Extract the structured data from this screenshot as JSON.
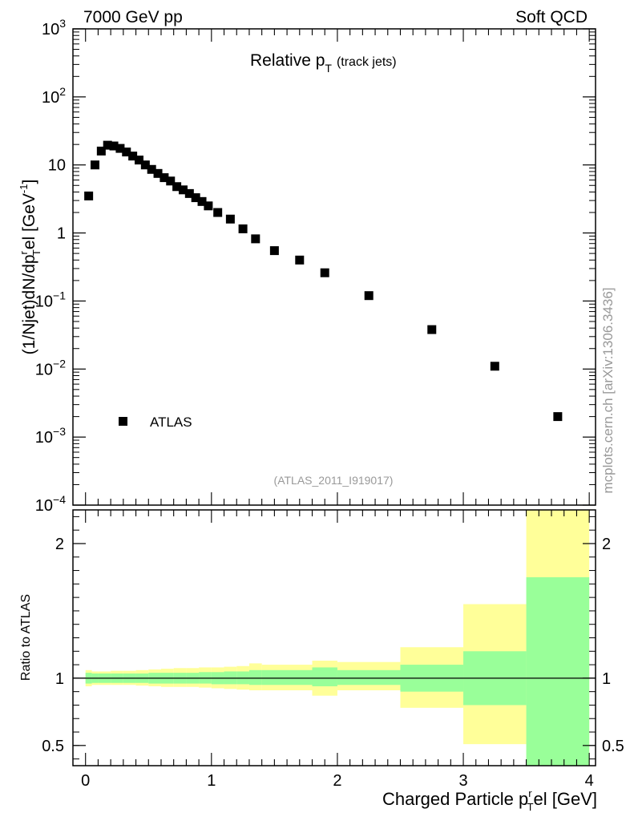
{
  "header": {
    "left": "7000 GeV pp",
    "right": "Soft QCD"
  },
  "plot_title": {
    "main": "Relative p",
    "sub": "T",
    "paren": "(track jets)"
  },
  "analysis_id": "(ATLAS_2011_I919017)",
  "watermark": "mcplots.cern.ch [arXiv:1306.3436]",
  "legend": {
    "label": "ATLAS"
  },
  "colors": {
    "band_outer": "#ffff99",
    "band_inner": "#99ff99",
    "marker": "#000000"
  },
  "chart_data": [
    {
      "type": "scatter",
      "panel": "main",
      "yscale": "log",
      "ylabel": "(1/Njet)dN/dp^r_T el [GeV^-1]",
      "xlim": [
        -0.1,
        4.05
      ],
      "ylim": [
        0.0001,
        1000
      ],
      "yticks": [
        {
          "value": 0.0001,
          "base": "10",
          "exp": "−4"
        },
        {
          "value": 0.001,
          "base": "10",
          "exp": "−3"
        },
        {
          "value": 0.01,
          "base": "10",
          "exp": "−2"
        },
        {
          "value": 0.1,
          "base": "10",
          "exp": "−1"
        },
        {
          "value": 1,
          "base": "1",
          "exp": ""
        },
        {
          "value": 10,
          "base": "10",
          "exp": ""
        },
        {
          "value": 100,
          "base": "10",
          "exp": "2"
        },
        {
          "value": 1000,
          "base": "10",
          "exp": "3"
        }
      ],
      "series": [
        {
          "name": "ATLAS",
          "x": [
            0.025,
            0.075,
            0.125,
            0.175,
            0.225,
            0.275,
            0.325,
            0.375,
            0.425,
            0.475,
            0.525,
            0.575,
            0.625,
            0.675,
            0.725,
            0.775,
            0.825,
            0.875,
            0.925,
            0.975,
            1.05,
            1.15,
            1.25,
            1.35,
            1.5,
            1.7,
            1.9,
            2.25,
            2.75,
            3.25,
            3.75
          ],
          "y": [
            3.5,
            10,
            16,
            19.5,
            19,
            17.5,
            15.5,
            13.5,
            11.8,
            10,
            8.6,
            7.5,
            6.5,
            5.8,
            4.8,
            4.3,
            3.8,
            3.3,
            2.9,
            2.5,
            2.0,
            1.6,
            1.15,
            0.82,
            0.55,
            0.4,
            0.26,
            0.12,
            0.038,
            0.011,
            0.002
          ]
        }
      ]
    },
    {
      "type": "area",
      "panel": "ratio",
      "ylabel": "Ratio to ATLAS",
      "xlabel": "Charged Particle p^r_T el [GeV]",
      "xlim": [
        -0.1,
        4.05
      ],
      "ylim": [
        0.35,
        2.25
      ],
      "xticks": [
        "0",
        "1",
        "2",
        "3",
        "4"
      ],
      "xtick_values": [
        0,
        1,
        2,
        3,
        4
      ],
      "yticks": [
        "0.5",
        "1",
        "2"
      ],
      "ytick_values": [
        0.5,
        1,
        2
      ],
      "bins": [
        {
          "lo": 0.0,
          "hi": 0.05,
          "in_lo": 0.96,
          "in_hi": 1.04,
          "out_lo": 0.94,
          "out_hi": 1.06
        },
        {
          "lo": 0.05,
          "hi": 0.1,
          "in_lo": 0.965,
          "in_hi": 1.035,
          "out_lo": 0.95,
          "out_hi": 1.05
        },
        {
          "lo": 0.1,
          "hi": 0.2,
          "in_lo": 0.965,
          "in_hi": 1.035,
          "out_lo": 0.95,
          "out_hi": 1.05
        },
        {
          "lo": 0.2,
          "hi": 0.3,
          "in_lo": 0.965,
          "in_hi": 1.035,
          "out_lo": 0.95,
          "out_hi": 1.055
        },
        {
          "lo": 0.3,
          "hi": 0.4,
          "in_lo": 0.965,
          "in_hi": 1.035,
          "out_lo": 0.95,
          "out_hi": 1.055
        },
        {
          "lo": 0.4,
          "hi": 0.5,
          "in_lo": 0.965,
          "in_hi": 1.035,
          "out_lo": 0.945,
          "out_hi": 1.06
        },
        {
          "lo": 0.5,
          "hi": 0.6,
          "in_lo": 0.96,
          "in_hi": 1.04,
          "out_lo": 0.94,
          "out_hi": 1.065
        },
        {
          "lo": 0.6,
          "hi": 0.7,
          "in_lo": 0.96,
          "in_hi": 1.04,
          "out_lo": 0.935,
          "out_hi": 1.07
        },
        {
          "lo": 0.7,
          "hi": 0.8,
          "in_lo": 0.96,
          "in_hi": 1.04,
          "out_lo": 0.935,
          "out_hi": 1.075
        },
        {
          "lo": 0.8,
          "hi": 0.9,
          "in_lo": 0.96,
          "in_hi": 1.04,
          "out_lo": 0.935,
          "out_hi": 1.075
        },
        {
          "lo": 0.9,
          "hi": 1.0,
          "in_lo": 0.96,
          "in_hi": 1.045,
          "out_lo": 0.93,
          "out_hi": 1.08
        },
        {
          "lo": 1.0,
          "hi": 1.1,
          "in_lo": 0.955,
          "in_hi": 1.045,
          "out_lo": 0.925,
          "out_hi": 1.08
        },
        {
          "lo": 1.1,
          "hi": 1.2,
          "in_lo": 0.955,
          "in_hi": 1.05,
          "out_lo": 0.92,
          "out_hi": 1.085
        },
        {
          "lo": 1.2,
          "hi": 1.3,
          "in_lo": 0.955,
          "in_hi": 1.05,
          "out_lo": 0.915,
          "out_hi": 1.09
        },
        {
          "lo": 1.3,
          "hi": 1.4,
          "in_lo": 0.95,
          "in_hi": 1.06,
          "out_lo": 0.91,
          "out_hi": 1.11
        },
        {
          "lo": 1.4,
          "hi": 1.8,
          "in_lo": 0.95,
          "in_hi": 1.06,
          "out_lo": 0.91,
          "out_hi": 1.1
        },
        {
          "lo": 1.8,
          "hi": 2.0,
          "in_lo": 0.94,
          "in_hi": 1.08,
          "out_lo": 0.87,
          "out_hi": 1.13
        },
        {
          "lo": 2.0,
          "hi": 2.5,
          "in_lo": 0.95,
          "in_hi": 1.06,
          "out_lo": 0.91,
          "out_hi": 1.12
        },
        {
          "lo": 2.5,
          "hi": 3.0,
          "in_lo": 0.9,
          "in_hi": 1.1,
          "out_lo": 0.78,
          "out_hi": 1.23
        },
        {
          "lo": 3.0,
          "hi": 3.5,
          "in_lo": 0.8,
          "in_hi": 1.2,
          "out_lo": 0.51,
          "out_hi": 1.55
        },
        {
          "lo": 3.5,
          "hi": 4.0,
          "in_lo": 0.35,
          "in_hi": 1.75,
          "out_lo": 0.35,
          "out_hi": 2.25
        }
      ],
      "reference_line": 1.0
    }
  ]
}
